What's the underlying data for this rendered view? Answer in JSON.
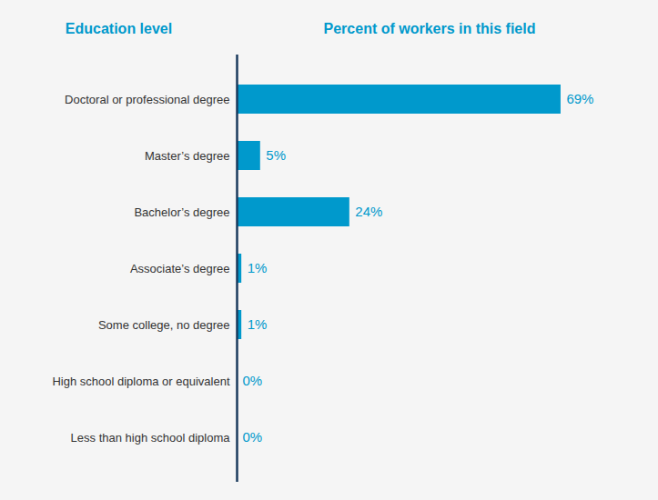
{
  "chart_data": {
    "type": "bar",
    "orientation": "horizontal",
    "xlabel": "Percent of workers in this field",
    "ylabel": "Education level",
    "categories": [
      "Doctoral or professional degree",
      "Master’s degree",
      "Bachelor’s degree",
      "Associate’s degree",
      "Some college, no degree",
      "High school diploma or equivalent",
      "Less than high school diploma"
    ],
    "values": [
      69,
      5,
      24,
      1,
      1,
      0,
      0
    ],
    "value_labels": [
      "69%",
      "5%",
      "24%",
      "1%",
      "1%",
      "0%",
      "0%"
    ],
    "data_labels": true,
    "color": "#0099cc",
    "xlim": [
      0,
      82
    ],
    "grid": false,
    "tick_labels": "y"
  }
}
